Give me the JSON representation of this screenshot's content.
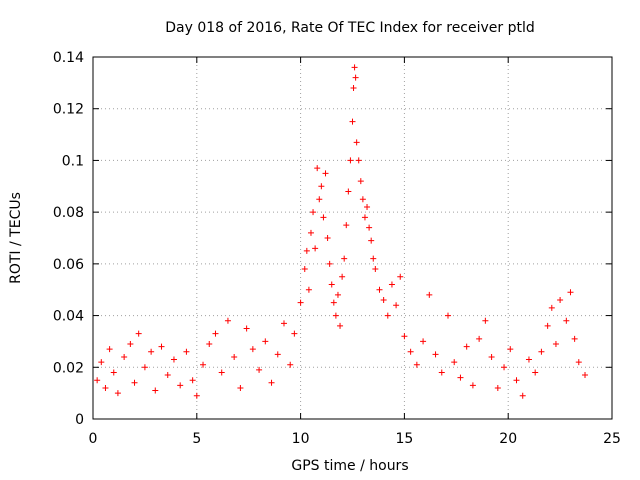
{
  "chart_data": {
    "type": "scatter",
    "title": "Day 018 of 2016, Rate Of TEC Index for receiver ptld",
    "xlabel": "GPS time / hours",
    "ylabel": "ROTI / TECUs",
    "xlim": [
      0,
      25
    ],
    "ylim": [
      0,
      0.14
    ],
    "xticks": [
      0,
      5,
      10,
      15,
      20,
      25
    ],
    "xtick_labels": [
      "0",
      "5",
      "10",
      "15",
      "20",
      "25"
    ],
    "yticks": [
      0,
      0.02,
      0.04,
      0.06,
      0.08,
      0.1,
      0.12,
      0.14
    ],
    "ytick_labels": [
      "0",
      "0.02",
      "0.04",
      "0.06",
      "0.08",
      "0.1",
      "0.12",
      "0.14"
    ],
    "grid": true,
    "marker": "+",
    "color": "#ff0000",
    "series": [
      {
        "name": "ROTI",
        "points": [
          [
            0.2,
            0.015
          ],
          [
            0.4,
            0.022
          ],
          [
            0.6,
            0.012
          ],
          [
            0.8,
            0.027
          ],
          [
            1.0,
            0.018
          ],
          [
            1.2,
            0.01
          ],
          [
            1.5,
            0.024
          ],
          [
            1.8,
            0.029
          ],
          [
            2.0,
            0.014
          ],
          [
            2.2,
            0.033
          ],
          [
            2.5,
            0.02
          ],
          [
            2.8,
            0.026
          ],
          [
            3.0,
            0.011
          ],
          [
            3.3,
            0.028
          ],
          [
            3.6,
            0.017
          ],
          [
            3.9,
            0.023
          ],
          [
            4.2,
            0.013
          ],
          [
            4.5,
            0.026
          ],
          [
            4.8,
            0.015
          ],
          [
            5.0,
            0.009
          ],
          [
            5.3,
            0.021
          ],
          [
            5.6,
            0.029
          ],
          [
            5.9,
            0.033
          ],
          [
            6.2,
            0.018
          ],
          [
            6.5,
            0.038
          ],
          [
            6.8,
            0.024
          ],
          [
            7.1,
            0.012
          ],
          [
            7.4,
            0.035
          ],
          [
            7.7,
            0.027
          ],
          [
            8.0,
            0.019
          ],
          [
            8.3,
            0.03
          ],
          [
            8.6,
            0.014
          ],
          [
            8.9,
            0.025
          ],
          [
            9.2,
            0.037
          ],
          [
            9.5,
            0.021
          ],
          [
            9.7,
            0.033
          ],
          [
            10.0,
            0.045
          ],
          [
            10.2,
            0.058
          ],
          [
            10.3,
            0.065
          ],
          [
            10.4,
            0.05
          ],
          [
            10.5,
            0.072
          ],
          [
            10.6,
            0.08
          ],
          [
            10.7,
            0.066
          ],
          [
            10.8,
            0.097
          ],
          [
            10.9,
            0.085
          ],
          [
            11.0,
            0.09
          ],
          [
            11.1,
            0.078
          ],
          [
            11.2,
            0.095
          ],
          [
            11.3,
            0.07
          ],
          [
            11.4,
            0.06
          ],
          [
            11.5,
            0.052
          ],
          [
            11.6,
            0.045
          ],
          [
            11.7,
            0.04
          ],
          [
            11.8,
            0.048
          ],
          [
            11.9,
            0.036
          ],
          [
            12.0,
            0.055
          ],
          [
            12.1,
            0.062
          ],
          [
            12.2,
            0.075
          ],
          [
            12.3,
            0.088
          ],
          [
            12.4,
            0.1
          ],
          [
            12.5,
            0.115
          ],
          [
            12.55,
            0.128
          ],
          [
            12.6,
            0.136
          ],
          [
            12.65,
            0.132
          ],
          [
            12.7,
            0.107
          ],
          [
            12.8,
            0.1
          ],
          [
            12.9,
            0.092
          ],
          [
            13.0,
            0.085
          ],
          [
            13.1,
            0.078
          ],
          [
            13.2,
            0.082
          ],
          [
            13.3,
            0.074
          ],
          [
            13.4,
            0.069
          ],
          [
            13.5,
            0.062
          ],
          [
            13.6,
            0.058
          ],
          [
            13.8,
            0.05
          ],
          [
            14.0,
            0.046
          ],
          [
            14.2,
            0.04
          ],
          [
            14.4,
            0.052
          ],
          [
            14.6,
            0.044
          ],
          [
            14.8,
            0.055
          ],
          [
            15.0,
            0.032
          ],
          [
            15.3,
            0.026
          ],
          [
            15.6,
            0.021
          ],
          [
            15.9,
            0.03
          ],
          [
            16.2,
            0.048
          ],
          [
            16.5,
            0.025
          ],
          [
            16.8,
            0.018
          ],
          [
            17.1,
            0.04
          ],
          [
            17.4,
            0.022
          ],
          [
            17.7,
            0.016
          ],
          [
            18.0,
            0.028
          ],
          [
            18.3,
            0.013
          ],
          [
            18.6,
            0.031
          ],
          [
            18.9,
            0.038
          ],
          [
            19.2,
            0.024
          ],
          [
            19.5,
            0.012
          ],
          [
            19.8,
            0.02
          ],
          [
            20.1,
            0.027
          ],
          [
            20.4,
            0.015
          ],
          [
            20.7,
            0.009
          ],
          [
            21.0,
            0.023
          ],
          [
            21.3,
            0.018
          ],
          [
            21.6,
            0.026
          ],
          [
            21.9,
            0.036
          ],
          [
            22.1,
            0.043
          ],
          [
            22.3,
            0.029
          ],
          [
            22.5,
            0.046
          ],
          [
            22.8,
            0.038
          ],
          [
            23.0,
            0.049
          ],
          [
            23.2,
            0.031
          ],
          [
            23.4,
            0.022
          ],
          [
            23.7,
            0.017
          ]
        ]
      }
    ]
  }
}
